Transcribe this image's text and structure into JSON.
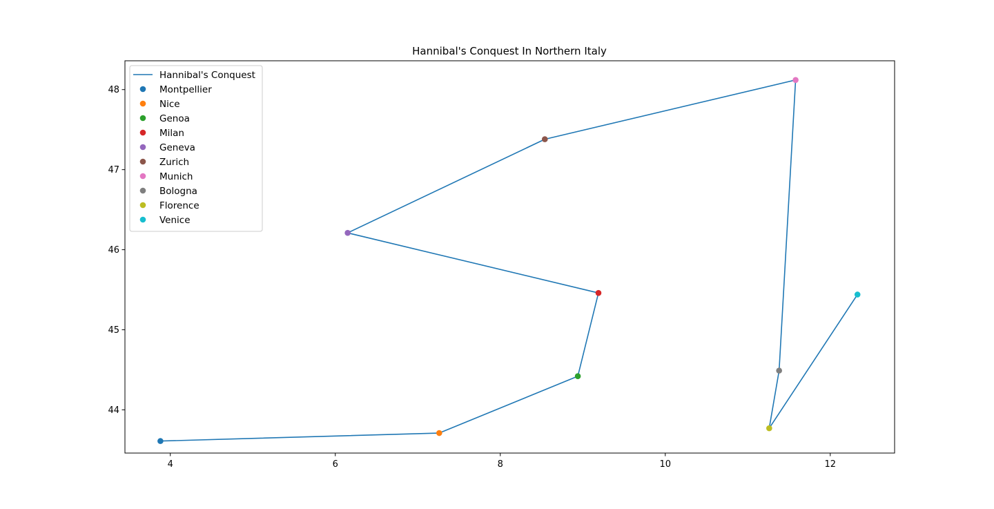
{
  "chart_data": {
    "type": "line",
    "title": "Hannibal's Conquest In Northern Italy",
    "xlabel": "",
    "ylabel": "",
    "xlim": [
      3.45,
      12.78
    ],
    "ylim": [
      43.46,
      48.36
    ],
    "xticks": [
      4,
      6,
      8,
      10,
      12
    ],
    "yticks": [
      44,
      45,
      46,
      47,
      48
    ],
    "grid": false,
    "legend_position": "upper left",
    "line_series": {
      "name": "Hannibal's Conquest",
      "color": "#1f77b4",
      "x": [
        3.88,
        7.26,
        8.94,
        9.19,
        6.15,
        8.54,
        11.58,
        11.38,
        11.26,
        12.33
      ],
      "y": [
        43.61,
        43.71,
        44.42,
        45.46,
        46.21,
        47.38,
        48.12,
        44.49,
        43.77,
        45.44
      ]
    },
    "points": [
      {
        "name": "Montpellier",
        "x": 3.88,
        "y": 43.61,
        "color": "#1f77b4"
      },
      {
        "name": "Nice",
        "x": 7.26,
        "y": 43.71,
        "color": "#ff7f0e"
      },
      {
        "name": "Genoa",
        "x": 8.94,
        "y": 44.42,
        "color": "#2ca02c"
      },
      {
        "name": "Milan",
        "x": 9.19,
        "y": 45.46,
        "color": "#d62728"
      },
      {
        "name": "Geneva",
        "x": 6.15,
        "y": 46.21,
        "color": "#9467bd"
      },
      {
        "name": "Zurich",
        "x": 8.54,
        "y": 47.38,
        "color": "#8c564b"
      },
      {
        "name": "Munich",
        "x": 11.58,
        "y": 48.12,
        "color": "#e377c2"
      },
      {
        "name": "Bologna",
        "x": 11.38,
        "y": 44.49,
        "color": "#7f7f7f"
      },
      {
        "name": "Florence",
        "x": 11.26,
        "y": 43.77,
        "color": "#bcbd22"
      },
      {
        "name": "Venice",
        "x": 12.33,
        "y": 45.44,
        "color": "#17becf"
      }
    ]
  }
}
